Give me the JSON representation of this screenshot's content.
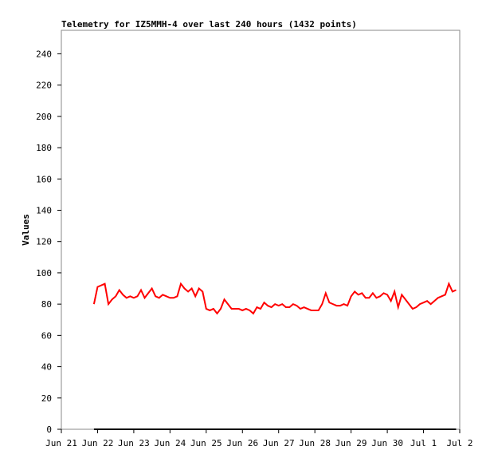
{
  "chart_data": {
    "type": "line",
    "title": "Telemetry for IZ5MMH-4 over last 240 hours (1432 points)",
    "y_label": "Values",
    "xlim": [
      0,
      11
    ],
    "xticks": [
      {
        "value": 0,
        "label": "Jun 21"
      },
      {
        "value": 1,
        "label": "Jun 22"
      },
      {
        "value": 2,
        "label": "Jun 23"
      },
      {
        "value": 3,
        "label": "Jun 24"
      },
      {
        "value": 4,
        "label": "Jun 25"
      },
      {
        "value": 5,
        "label": "Jun 26"
      },
      {
        "value": 6,
        "label": "Jun 27"
      },
      {
        "value": 7,
        "label": "Jun 28"
      },
      {
        "value": 8,
        "label": "Jun 29"
      },
      {
        "value": 9,
        "label": "Jun 30"
      },
      {
        "value": 10,
        "label": "Jul 1"
      },
      {
        "value": 11,
        "label": "Jul 2"
      }
    ],
    "ylim": [
      0,
      255
    ],
    "yticks": [
      0,
      20,
      40,
      60,
      80,
      100,
      120,
      140,
      160,
      180,
      200,
      220,
      240
    ],
    "series": [
      {
        "color": "#ff0000",
        "x": [
          0.9,
          1,
          1.1,
          1.2,
          1.3,
          1.4,
          1.5,
          1.6,
          1.7,
          1.8,
          1.9,
          2,
          2.1,
          2.2,
          2.3,
          2.4,
          2.5,
          2.6,
          2.7,
          2.8,
          2.9,
          3,
          3.1,
          3.2,
          3.3,
          3.4,
          3.5,
          3.6,
          3.7,
          3.8,
          3.9,
          4,
          4.1,
          4.2,
          4.3,
          4.4,
          4.5,
          4.6,
          4.7,
          4.8,
          4.9,
          5,
          5.1,
          5.2,
          5.3,
          5.4,
          5.5,
          5.6,
          5.7,
          5.8,
          5.9,
          6,
          6.1,
          6.2,
          6.3,
          6.4,
          6.5,
          6.6,
          6.7,
          6.8,
          6.9,
          7,
          7.1,
          7.2,
          7.3,
          7.4,
          7.5,
          7.6,
          7.7,
          7.8,
          7.9,
          8,
          8.1,
          8.2,
          8.3,
          8.4,
          8.5,
          8.6,
          8.7,
          8.8,
          8.9,
          9,
          9.1,
          9.2,
          9.3,
          9.4,
          9.5,
          9.6,
          9.7,
          9.8,
          9.9,
          10,
          10.1,
          10.2,
          10.3,
          10.4,
          10.5,
          10.6,
          10.7,
          10.8,
          10.9
        ],
        "values": [
          80,
          91,
          92,
          93,
          80,
          83,
          85,
          89,
          86,
          84,
          85,
          84,
          85,
          89,
          84,
          87,
          90,
          85,
          84,
          86,
          85,
          84,
          84,
          85,
          93,
          90,
          88,
          90,
          85,
          90,
          88,
          77,
          76,
          77,
          74,
          77,
          83,
          80,
          77,
          77,
          77,
          76,
          77,
          76,
          74,
          78,
          77,
          81,
          79,
          78,
          80,
          79,
          80,
          78,
          78,
          80,
          79,
          77,
          78,
          77,
          76,
          76,
          76,
          80,
          87,
          81,
          80,
          79,
          79,
          80,
          79,
          85,
          88,
          86,
          87,
          84,
          84,
          87,
          84,
          85,
          87,
          86,
          82,
          88,
          78,
          86,
          83,
          80,
          77,
          78,
          80,
          81,
          82,
          80,
          82,
          84,
          85,
          86,
          93,
          88,
          89
        ]
      },
      {
        "color": "#000000",
        "x": [
          0.9,
          10.9
        ],
        "values": [
          0,
          0
        ]
      }
    ]
  }
}
